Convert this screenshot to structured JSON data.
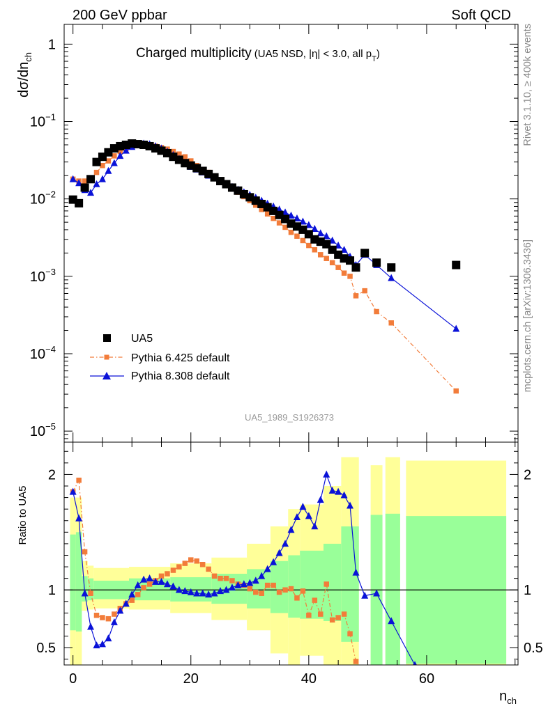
{
  "header": {
    "left": "200 GeV ppbar",
    "right": "Soft QCD"
  },
  "side_text": {
    "upper": "Rivet 3.1.10, ≥ 400k events",
    "lower": "mcplots.cern.ch [arXiv:1306.3436]"
  },
  "chart_data": [
    {
      "type": "scatter",
      "panel": "main",
      "title_main": "Charged multiplicity",
      "title_sub": "(UA5 NSD, |η| < 3.0, all p",
      "title_sub_sub": "T",
      "title_sub_end": ")",
      "ylabel": "dσ/dn",
      "ylabel_sub": "ch",
      "yscale": "log",
      "ylim": [
        7.2e-06,
        1.8
      ],
      "xlim": [
        -1.5,
        75.5
      ],
      "y_tick_labels": [
        {
          "value": 1,
          "base": "1",
          "exp": ""
        },
        {
          "value": 0.1,
          "base": "10",
          "exp": "−1"
        },
        {
          "value": 0.01,
          "base": "10",
          "exp": "−2"
        },
        {
          "value": 0.001,
          "base": "10",
          "exp": "−3"
        },
        {
          "value": 0.0001,
          "base": "10",
          "exp": "−4"
        },
        {
          "value": 1e-05,
          "base": "10",
          "exp": "−5"
        }
      ],
      "watermark": "UA5_1989_S1926373",
      "legend": {
        "placement": "bottom-left",
        "entries": [
          "UA5",
          "Pythia 6.425 default",
          "Pythia 8.308 default"
        ]
      },
      "series": [
        {
          "name": "UA5",
          "color": "#000000",
          "marker": "square",
          "x": [
            0,
            1,
            2,
            3,
            4,
            5,
            6,
            7,
            8,
            9,
            10,
            11,
            12,
            13,
            14,
            15,
            16,
            17,
            18,
            19,
            20,
            21,
            22,
            23,
            24,
            25,
            26,
            27,
            28,
            29,
            30,
            31,
            32,
            33,
            34,
            35,
            36,
            37,
            38,
            39,
            40,
            41,
            42,
            43,
            44,
            45,
            46,
            47,
            48,
            49.5,
            51.5,
            54,
            65
          ],
          "y": [
            0.0098,
            0.0088,
            0.014,
            0.018,
            0.03,
            0.035,
            0.04,
            0.045,
            0.048,
            0.05,
            0.052,
            0.051,
            0.05,
            0.048,
            0.045,
            0.042,
            0.039,
            0.035,
            0.032,
            0.029,
            0.027,
            0.025,
            0.023,
            0.021,
            0.019,
            0.017,
            0.0155,
            0.014,
            0.0128,
            0.0115,
            0.0105,
            0.0095,
            0.0086,
            0.0078,
            0.007,
            0.0062,
            0.0055,
            0.0048,
            0.0044,
            0.004,
            0.0035,
            0.003,
            0.0028,
            0.0026,
            0.0022,
            0.0019,
            0.0017,
            0.0016,
            0.0013,
            0.002,
            0.0015,
            0.0013,
            0.0014
          ]
        },
        {
          "name": "Pythia 6.425 default",
          "color": "#f27c3a",
          "marker": "square",
          "line": "dashdot",
          "x": [
            0,
            1,
            2,
            3,
            4,
            5,
            6,
            7,
            8,
            9,
            10,
            11,
            12,
            13,
            14,
            15,
            16,
            17,
            18,
            19,
            20,
            21,
            22,
            23,
            24,
            25,
            26,
            27,
            28,
            29,
            30,
            31,
            32,
            33,
            34,
            35,
            36,
            37,
            38,
            39,
            40,
            41,
            42,
            43,
            44,
            45,
            46,
            47,
            48,
            49.5,
            51.5,
            54,
            65
          ],
          "y": [
            0.018,
            0.017,
            0.017,
            0.0175,
            0.022,
            0.027,
            0.031,
            0.036,
            0.041,
            0.045,
            0.048,
            0.05,
            0.051,
            0.05,
            0.048,
            0.046,
            0.044,
            0.041,
            0.038,
            0.035,
            0.031,
            0.027,
            0.024,
            0.022,
            0.0195,
            0.0175,
            0.0155,
            0.014,
            0.0122,
            0.0107,
            0.0095,
            0.0083,
            0.0073,
            0.0064,
            0.0056,
            0.0049,
            0.0043,
            0.0037,
            0.0033,
            0.0029,
            0.0025,
            0.0022,
            0.0019,
            0.0017,
            0.0015,
            0.0013,
            0.0011,
            0.001,
            0.00056,
            0.00065,
            0.00035,
            0.00025,
            3.3e-05
          ]
        },
        {
          "name": "Pythia 8.308 default",
          "color": "#0a12d8",
          "marker": "triangle",
          "line": "solid",
          "x": [
            0,
            1,
            2,
            3,
            4,
            5,
            6,
            7,
            8,
            9,
            10,
            11,
            12,
            13,
            14,
            15,
            16,
            17,
            18,
            19,
            20,
            21,
            22,
            23,
            24,
            25,
            26,
            27,
            28,
            29,
            30,
            31,
            32,
            33,
            34,
            35,
            36,
            37,
            38,
            39,
            40,
            41,
            42,
            43,
            44,
            45,
            46,
            47,
            48,
            49.5,
            51.5,
            54,
            65
          ],
          "y": [
            0.018,
            0.016,
            0.013,
            0.012,
            0.0155,
            0.018,
            0.023,
            0.029,
            0.036,
            0.042,
            0.047,
            0.051,
            0.052,
            0.051,
            0.048,
            0.045,
            0.041,
            0.037,
            0.033,
            0.029,
            0.026,
            0.024,
            0.022,
            0.02,
            0.0185,
            0.017,
            0.0155,
            0.0143,
            0.0132,
            0.0122,
            0.0113,
            0.0104,
            0.0095,
            0.0087,
            0.008,
            0.0073,
            0.0067,
            0.0061,
            0.0056,
            0.0051,
            0.0046,
            0.0041,
            0.0036,
            0.0033,
            0.0029,
            0.0025,
            0.0022,
            0.0018,
            0.0014,
            0.0019,
            0.0014,
            0.00095,
            0.00021
          ]
        }
      ]
    },
    {
      "type": "scatter",
      "panel": "ratio",
      "ylabel": "Ratio to UA5",
      "xlabel": "n",
      "xlabel_sub": "ch",
      "ylim": [
        0.35,
        2.28
      ],
      "xlim": [
        -1.5,
        75.5
      ],
      "y_ticks": [
        0.5,
        1,
        2
      ],
      "y_tick_labels": [
        "0.5",
        "1",
        "2"
      ],
      "x_ticks": [
        0,
        20,
        40,
        60
      ],
      "x_tick_labels": [
        "0",
        "20",
        "40",
        "60"
      ],
      "reference_line": 1,
      "uncertainty_bands": {
        "colors": {
          "inner": "#99ff99",
          "outer": "#ffff99"
        },
        "bins": [
          {
            "x": [
              -0.5,
              0.5
            ],
            "inner": [
              0.65,
              1.48
            ],
            "outer": [
              0.35,
              1.8
            ]
          },
          {
            "x": [
              0.5,
              1.5
            ],
            "inner": [
              0.64,
              1.5
            ],
            "outer": [
              0.35,
              1.8
            ]
          },
          {
            "x": [
              1.5,
              2.5
            ],
            "inner": [
              0.9,
              1.12
            ],
            "outer": [
              0.82,
              1.25
            ]
          },
          {
            "x": [
              2.5,
              3.5
            ],
            "inner": [
              0.91,
              1.1
            ],
            "outer": [
              0.83,
              1.21
            ]
          },
          {
            "x": [
              3.5,
              9.5
            ],
            "inner": [
              0.92,
              1.08
            ],
            "outer": [
              0.84,
              1.19
            ]
          },
          {
            "x": [
              9.5,
              16.5
            ],
            "inner": [
              0.91,
              1.1
            ],
            "outer": [
              0.83,
              1.2
            ]
          },
          {
            "x": [
              16.5,
              23.5
            ],
            "inner": [
              0.9,
              1.11
            ],
            "outer": [
              0.8,
              1.23
            ]
          },
          {
            "x": [
              23.5,
              29.5
            ],
            "inner": [
              0.88,
              1.14
            ],
            "outer": [
              0.74,
              1.28
            ]
          },
          {
            "x": [
              29.5,
              33.5
            ],
            "inner": [
              0.84,
              1.18
            ],
            "outer": [
              0.65,
              1.4
            ]
          },
          {
            "x": [
              33.5,
              36.5
            ],
            "inner": [
              0.8,
              1.25
            ],
            "outer": [
              0.45,
              1.55
            ]
          },
          {
            "x": [
              36.5,
              38.5
            ],
            "inner": [
              0.76,
              1.3
            ],
            "outer": [
              0.35,
              1.7
            ]
          },
          {
            "x": [
              38.5,
              42.5
            ],
            "inner": [
              0.75,
              1.34
            ],
            "outer": [
              0.43,
              1.74
            ]
          },
          {
            "x": [
              42.5,
              45.5
            ],
            "inner": [
              0.73,
              1.4
            ],
            "outer": [
              0.35,
              1.9
            ]
          },
          {
            "x": [
              45.5,
              48.5
            ],
            "inner": [
              0.55,
              1.55
            ],
            "outer": [
              0.35,
              2.15
            ]
          },
          {
            "x": [
              50.5,
              52.5
            ],
            "inner": [
              0.35,
              1.65
            ],
            "outer": [
              0.35,
              2.08
            ]
          },
          {
            "x": [
              53,
              55.5
            ],
            "inner": [
              0.35,
              1.66
            ],
            "outer": [
              0.35,
              2.15
            ]
          },
          {
            "x": [
              56.5,
              73.5
            ],
            "inner": [
              0.36,
              1.64
            ],
            "outer": [
              0.35,
              2.12
            ]
          }
        ]
      },
      "series": [
        {
          "name": "Pythia 6.425 default",
          "color": "#f27c3a",
          "marker": "square",
          "line": "dashdot",
          "x": [
            0,
            1,
            2,
            3,
            4,
            5,
            6,
            7,
            8,
            9,
            10,
            11,
            12,
            13,
            14,
            15,
            16,
            17,
            18,
            19,
            20,
            21,
            22,
            23,
            24,
            25,
            26,
            27,
            28,
            29,
            30,
            31,
            32,
            33,
            34,
            35,
            36,
            37,
            38,
            39,
            40,
            41,
            42,
            43,
            44,
            45,
            46,
            47,
            48,
            49
          ],
          "y": [
            1.85,
            1.95,
            1.33,
            0.97,
            0.78,
            0.76,
            0.75,
            0.79,
            0.84,
            0.88,
            0.91,
            0.96,
            1.02,
            1.05,
            1.08,
            1.12,
            1.14,
            1.17,
            1.2,
            1.23,
            1.26,
            1.25,
            1.22,
            1.18,
            1.12,
            1.1,
            1.1,
            1.08,
            1.05,
            1.04,
            1.01,
            0.98,
            0.97,
            1.04,
            1.04,
            0.98,
            1.0,
            1.01,
            0.93,
            0.99,
            0.78,
            0.91,
            0.79,
            1.05,
            0.74,
            0.76,
            0.79,
            0.62,
            0.38,
            0.32
          ]
        },
        {
          "name": "Pythia 8.308 default",
          "color": "#0a12d8",
          "marker": "triangle",
          "line": "solid",
          "x": [
            0,
            1,
            2,
            3,
            4,
            5,
            6,
            7,
            8,
            9,
            10,
            11,
            12,
            13,
            14,
            15,
            16,
            17,
            18,
            19,
            20,
            21,
            22,
            23,
            24,
            25,
            26,
            27,
            28,
            29,
            30,
            31,
            32,
            33,
            34,
            35,
            36,
            37,
            38,
            39,
            40,
            41,
            42,
            43,
            44,
            45,
            46,
            47,
            48,
            49.5,
            51.5,
            54,
            58
          ],
          "y": [
            1.85,
            1.62,
            0.97,
            0.68,
            0.52,
            0.53,
            0.58,
            0.72,
            0.82,
            0.88,
            0.96,
            1.04,
            1.09,
            1.1,
            1.07,
            1.07,
            1.05,
            1.03,
            1.0,
            0.99,
            0.98,
            0.97,
            0.97,
            0.96,
            0.97,
            0.99,
            1.0,
            1.02,
            1.04,
            1.05,
            1.06,
            1.08,
            1.12,
            1.18,
            1.24,
            1.32,
            1.4,
            1.52,
            1.63,
            1.72,
            1.64,
            1.55,
            1.78,
            2.0,
            1.86,
            1.85,
            1.82,
            1.73,
            1.15,
            0.95,
            0.97,
            0.73,
            0.35
          ]
        }
      ]
    }
  ]
}
